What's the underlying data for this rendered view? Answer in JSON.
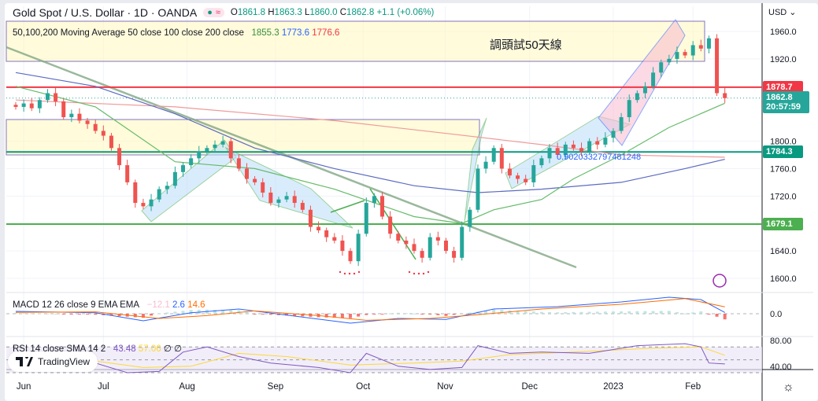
{
  "header": {
    "symbol": "Gold Spot / U.S. Dollar · 1D · OANDA",
    "open_label": "O",
    "open": "1861.8",
    "high_label": "H",
    "high": "1863.3",
    "low_label": "L",
    "low": "1860.0",
    "close_label": "C",
    "close": "1862.8",
    "change": "+1.1 (+0.06%)",
    "pill_dot": "●",
    "pill_wave": "≈"
  },
  "ma_legend": {
    "label": "50,100,200 Moving Average 50 close 100 close 200 close",
    "v50": "1855.3",
    "v100": "1773.6",
    "v200": "1776.6"
  },
  "macd_legend": {
    "label": "MACD 12 26 close 9 EMA EMA",
    "hist": "−12.1",
    "macd": "2.6",
    "signal": "14.6"
  },
  "rsi_legend": {
    "label": "RSI 14 close SMA 14 2",
    "rsi": "43.48",
    "sma": "57.06",
    "extra": "∅ ∅"
  },
  "annotation": "調頭試50天線",
  "fib_label": "0.9020332797481248",
  "currency": "USD ⌄",
  "watermark": "TradingView",
  "settings_icon": "gear-icon",
  "colors": {
    "up": "#26a69a",
    "down": "#ef5350",
    "ma50": "#388e3c",
    "ma100": "#3f51b5",
    "ma200": "#e57373"
  },
  "chart_data": {
    "type": "candlestick",
    "title": "Gold Spot / U.S. Dollar · 1D · OANDA",
    "ylim": [
      1560,
      1990
    ],
    "y_ticks": [
      "1960.0",
      "1920.0",
      "1800.0",
      "1760.0",
      "1720.0",
      "1640.0",
      "1600.0"
    ],
    "y_tick_values": [
      1960,
      1920,
      1800,
      1760,
      1720,
      1640,
      1600
    ],
    "x_ticks": [
      "Jun",
      "Jul",
      "Aug",
      "Sep",
      "Oct",
      "Nov",
      "Dec",
      "2023",
      "Feb"
    ],
    "x_tick_index": [
      1,
      11,
      21.5,
      32.6,
      43.6,
      53.9,
      64.5,
      75,
      85
    ],
    "closes": [
      1850,
      1855,
      1848,
      1860,
      1870,
      1858,
      1835,
      1840,
      1830,
      1825,
      1815,
      1808,
      1790,
      1765,
      1740,
      1710,
      1705,
      1715,
      1730,
      1735,
      1755,
      1765,
      1775,
      1785,
      1790,
      1795,
      1800,
      1775,
      1760,
      1745,
      1740,
      1725,
      1710,
      1715,
      1720,
      1710,
      1700,
      1675,
      1670,
      1660,
      1655,
      1640,
      1625,
      1665,
      1710,
      1720,
      1690,
      1665,
      1655,
      1650,
      1640,
      1630,
      1660,
      1655,
      1640,
      1630,
      1675,
      1700,
      1760,
      1770,
      1790,
      1760,
      1750,
      1745,
      1740,
      1765,
      1775,
      1790,
      1780,
      1795,
      1790,
      1785,
      1800,
      1795,
      1805,
      1815,
      1835,
      1860,
      1870,
      1880,
      1900,
      1915,
      1920,
      1930,
      1925,
      1940,
      1935,
      1950,
      1870,
      1862.8
    ],
    "ma50": [
      [
        0,
        1880
      ],
      [
        10,
        1850
      ],
      [
        20,
        1770
      ],
      [
        30,
        1760
      ],
      [
        40,
        1730
      ],
      [
        50,
        1690
      ],
      [
        56,
        1680
      ],
      [
        60,
        1700
      ],
      [
        66,
        1715
      ],
      [
        70,
        1745
      ],
      [
        76,
        1780
      ],
      [
        82,
        1820
      ],
      [
        89,
        1855.3
      ]
    ],
    "ma100": [
      [
        0,
        1900
      ],
      [
        10,
        1880
      ],
      [
        20,
        1840
      ],
      [
        30,
        1790
      ],
      [
        40,
        1760
      ],
      [
        50,
        1735
      ],
      [
        58,
        1725
      ],
      [
        66,
        1730
      ],
      [
        76,
        1740
      ],
      [
        84,
        1760
      ],
      [
        89,
        1773.6
      ]
    ],
    "ma200": [
      [
        0,
        1860
      ],
      [
        20,
        1850
      ],
      [
        40,
        1830
      ],
      [
        55,
        1810
      ],
      [
        66,
        1795
      ],
      [
        76,
        1780
      ],
      [
        89,
        1776.6
      ]
    ],
    "levels": [
      {
        "value": 1878.7,
        "label": "1878.7",
        "color": "#f23645"
      },
      {
        "value": 1784.3,
        "label": "1784.3",
        "color": "#089981"
      },
      {
        "value": 1679.1,
        "label": "1679.1",
        "color": "#4caf50"
      }
    ],
    "last_price": {
      "label": "1862.8",
      "countdown": "20:57:59",
      "color": "#26a69a"
    },
    "macd": {
      "zero_label": "0.0",
      "macd": [
        [
          0,
          5
        ],
        [
          10,
          2
        ],
        [
          16,
          -15
        ],
        [
          22,
          2
        ],
        [
          28,
          10
        ],
        [
          35,
          -5
        ],
        [
          42,
          -20
        ],
        [
          48,
          -10
        ],
        [
          54,
          -12
        ],
        [
          60,
          10
        ],
        [
          68,
          15
        ],
        [
          76,
          25
        ],
        [
          82,
          35
        ],
        [
          86,
          30
        ],
        [
          89,
          2.6
        ]
      ],
      "signal": [
        [
          0,
          3
        ],
        [
          10,
          4
        ],
        [
          18,
          -10
        ],
        [
          24,
          -4
        ],
        [
          30,
          6
        ],
        [
          38,
          -4
        ],
        [
          44,
          -14
        ],
        [
          52,
          -10
        ],
        [
          58,
          -2
        ],
        [
          66,
          10
        ],
        [
          76,
          20
        ],
        [
          84,
          32
        ],
        [
          89,
          14.6
        ]
      ]
    },
    "rsi": {
      "ticks": [
        "80.00",
        "40.00"
      ],
      "rsi": [
        [
          0,
          50
        ],
        [
          4,
          55
        ],
        [
          10,
          45
        ],
        [
          14,
          30
        ],
        [
          18,
          32
        ],
        [
          21,
          62
        ],
        [
          24,
          70
        ],
        [
          28,
          55
        ],
        [
          32,
          45
        ],
        [
          38,
          38
        ],
        [
          42,
          30
        ],
        [
          44,
          60
        ],
        [
          48,
          40
        ],
        [
          52,
          35
        ],
        [
          56,
          38
        ],
        [
          58,
          72
        ],
        [
          62,
          60
        ],
        [
          66,
          62
        ],
        [
          72,
          60
        ],
        [
          78,
          72
        ],
        [
          84,
          75
        ],
        [
          86,
          70
        ],
        [
          87,
          45
        ],
        [
          89,
          43.48
        ]
      ],
      "sma": [
        [
          0,
          45
        ],
        [
          10,
          48
        ],
        [
          16,
          38
        ],
        [
          22,
          40
        ],
        [
          28,
          60
        ],
        [
          34,
          55
        ],
        [
          42,
          42
        ],
        [
          50,
          45
        ],
        [
          56,
          48
        ],
        [
          62,
          58
        ],
        [
          70,
          62
        ],
        [
          80,
          68
        ],
        [
          86,
          70
        ],
        [
          89,
          57.06
        ]
      ]
    }
  }
}
